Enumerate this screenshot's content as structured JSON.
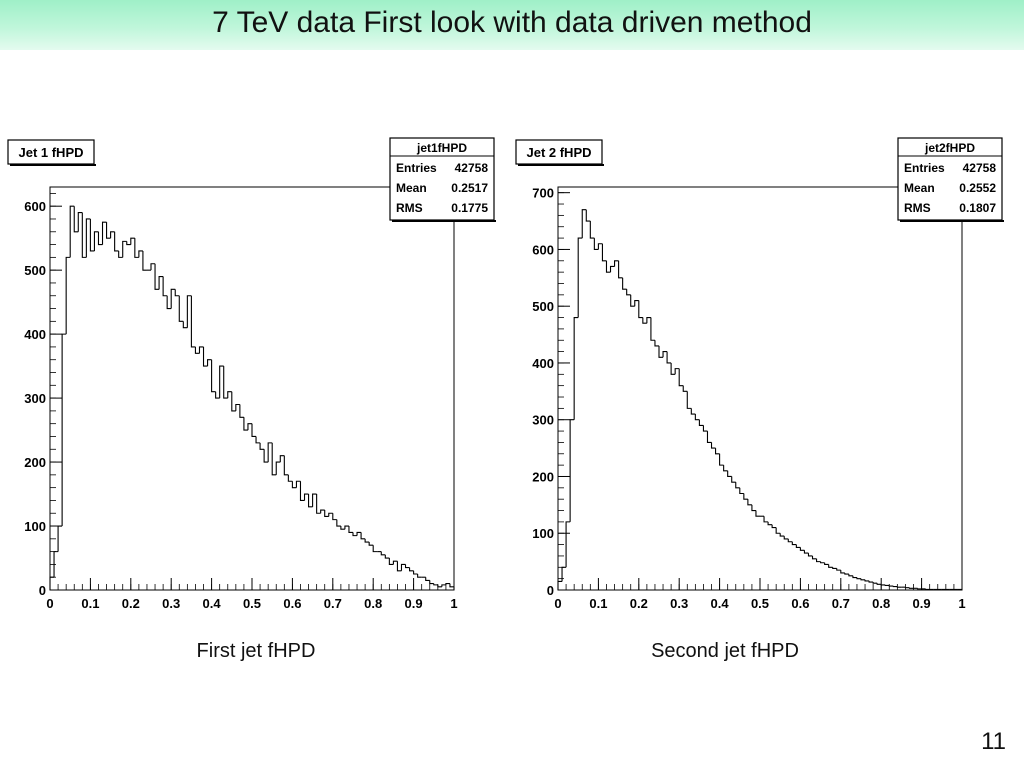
{
  "slide": {
    "title": "7 TeV data First look with data driven method",
    "page_number": "11"
  },
  "captions": [
    "First jet fHPD",
    "Second jet fHPD"
  ],
  "chart_data": [
    {
      "type": "histogram",
      "title": "Jet 1 fHPD",
      "xlim": [
        0,
        1
      ],
      "ylim": [
        0,
        630
      ],
      "x_ticks": [
        "0",
        "0.1",
        "0.2",
        "0.3",
        "0.4",
        "0.5",
        "0.6",
        "0.7",
        "0.8",
        "0.9",
        "1"
      ],
      "y_ticks": [
        0,
        100,
        200,
        300,
        400,
        500,
        600
      ],
      "stats": {
        "name": "jet1fHPD",
        "rows": [
          [
            "Entries",
            "42758"
          ],
          [
            "Mean",
            "0.2517"
          ],
          [
            "RMS",
            "0.1775"
          ]
        ]
      },
      "bin_width": 0.01,
      "values": [
        20,
        60,
        100,
        400,
        520,
        600,
        560,
        590,
        520,
        580,
        530,
        560,
        540,
        575,
        550,
        560,
        530,
        520,
        545,
        540,
        550,
        520,
        530,
        500,
        500,
        510,
        470,
        490,
        460,
        440,
        470,
        460,
        420,
        410,
        460,
        380,
        370,
        380,
        350,
        360,
        310,
        300,
        350,
        300,
        310,
        280,
        290,
        270,
        250,
        260,
        240,
        230,
        220,
        200,
        230,
        180,
        200,
        210,
        180,
        170,
        160,
        170,
        140,
        150,
        130,
        150,
        120,
        125,
        115,
        120,
        110,
        100,
        95,
        100,
        90,
        85,
        90,
        80,
        75,
        70,
        60,
        60,
        55,
        50,
        40,
        45,
        30,
        40,
        35,
        30,
        25,
        20,
        20,
        15,
        10,
        8,
        5,
        8,
        10,
        5
      ]
    },
    {
      "type": "histogram",
      "title": "Jet 2 fHPD",
      "xlim": [
        0,
        1
      ],
      "ylim": [
        0,
        710
      ],
      "x_ticks": [
        "0",
        "0.1",
        "0.2",
        "0.3",
        "0.4",
        "0.5",
        "0.6",
        "0.7",
        "0.8",
        "0.9",
        "1"
      ],
      "y_ticks": [
        0,
        100,
        200,
        300,
        400,
        500,
        600,
        700
      ],
      "stats": {
        "name": "jet2fHPD",
        "rows": [
          [
            "Entries",
            "42758"
          ],
          [
            "Mean",
            "0.2552"
          ],
          [
            "RMS",
            "0.1807"
          ]
        ]
      },
      "bin_width": 0.01,
      "values": [
        15,
        40,
        120,
        300,
        480,
        620,
        670,
        650,
        620,
        600,
        610,
        580,
        560,
        570,
        580,
        550,
        530,
        520,
        500,
        510,
        480,
        470,
        480,
        440,
        430,
        410,
        420,
        400,
        380,
        390,
        360,
        350,
        320,
        310,
        300,
        290,
        280,
        260,
        250,
        240,
        220,
        210,
        200,
        190,
        180,
        170,
        160,
        150,
        140,
        130,
        130,
        120,
        115,
        110,
        100,
        95,
        90,
        85,
        80,
        75,
        70,
        65,
        60,
        55,
        50,
        48,
        45,
        40,
        38,
        35,
        30,
        28,
        25,
        22,
        20,
        18,
        16,
        14,
        12,
        10,
        9,
        8,
        7,
        6,
        5,
        5,
        4,
        3,
        3,
        2,
        2,
        1,
        1,
        1,
        1,
        1,
        1,
        1,
        1,
        1
      ]
    }
  ]
}
